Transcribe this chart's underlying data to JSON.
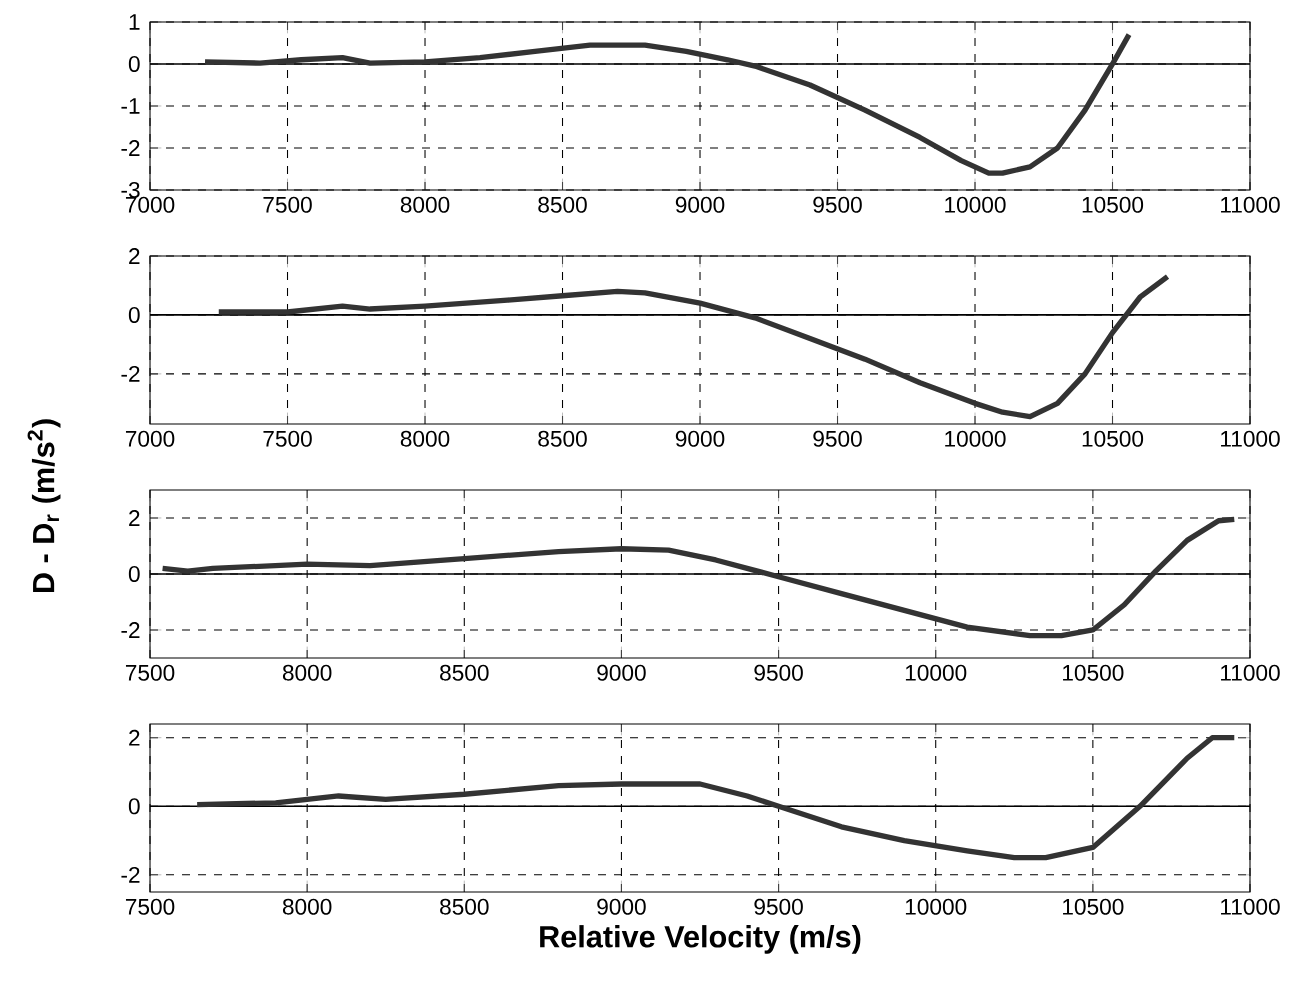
{
  "chart_data": [
    {
      "type": "line",
      "x": [
        7200,
        7400,
        7550,
        7700,
        7800,
        8000,
        8200,
        8400,
        8600,
        8800,
        8950,
        9100,
        9200,
        9400,
        9600,
        9800,
        9950,
        10050,
        10100,
        10200,
        10300,
        10400,
        10500,
        10560
      ],
      "series": [
        {
          "color": "#333333",
          "values": [
            0.05,
            0.02,
            0.1,
            0.15,
            0.02,
            0.05,
            0.15,
            0.3,
            0.45,
            0.45,
            0.3,
            0.1,
            -0.05,
            -0.5,
            -1.1,
            -1.75,
            -2.3,
            -2.6,
            -2.6,
            -2.45,
            -2.0,
            -1.1,
            0.0,
            0.7
          ]
        }
      ],
      "xlim": [
        7000,
        11000
      ],
      "xticks": [
        7000,
        7500,
        8000,
        8500,
        9000,
        9500,
        10000,
        10500,
        11000
      ],
      "ylim": [
        -3,
        1
      ],
      "yticks": [
        -3,
        -2,
        -1,
        0,
        1
      ],
      "grid": true,
      "ref_lines": [
        {
          "axis": "y",
          "value": 0
        }
      ]
    },
    {
      "type": "line",
      "x": [
        7250,
        7500,
        7700,
        7800,
        8000,
        8300,
        8500,
        8700,
        8800,
        9000,
        9200,
        9400,
        9600,
        9800,
        10000,
        10100,
        10200,
        10300,
        10400,
        10500,
        10600,
        10700
      ],
      "series": [
        {
          "color": "#333333",
          "values": [
            0.1,
            0.1,
            0.3,
            0.2,
            0.3,
            0.5,
            0.65,
            0.8,
            0.75,
            0.4,
            -0.1,
            -0.8,
            -1.5,
            -2.3,
            -3.0,
            -3.3,
            -3.45,
            -3.0,
            -2.0,
            -0.6,
            0.6,
            1.3
          ]
        }
      ],
      "xlim": [
        7000,
        11000
      ],
      "xticks": [
        7000,
        7500,
        8000,
        8500,
        9000,
        9500,
        10000,
        10500,
        11000
      ],
      "ylim": [
        -3.7,
        2
      ],
      "yticks": [
        -2,
        0,
        2
      ],
      "grid": true,
      "ylabel": "D - D$_{r}$ (m/s$^{2}$)",
      "ref_lines": [
        {
          "axis": "y",
          "value": 0
        }
      ]
    },
    {
      "type": "line",
      "x": [
        7540,
        7620,
        7700,
        8000,
        8200,
        8500,
        8800,
        9000,
        9150,
        9300,
        9500,
        9700,
        9900,
        10100,
        10300,
        10400,
        10500,
        10600,
        10700,
        10800,
        10900,
        10950
      ],
      "series": [
        {
          "color": "#333333",
          "values": [
            0.2,
            0.1,
            0.2,
            0.35,
            0.3,
            0.55,
            0.8,
            0.9,
            0.85,
            0.5,
            -0.1,
            -0.7,
            -1.3,
            -1.9,
            -2.2,
            -2.2,
            -2.0,
            -1.1,
            0.1,
            1.2,
            1.9,
            1.95
          ]
        }
      ],
      "xlim": [
        7500,
        11000
      ],
      "xticks": [
        7500,
        8000,
        8500,
        9000,
        9500,
        10000,
        10500,
        11000
      ],
      "ylim": [
        -3,
        3
      ],
      "yticks": [
        -2,
        0,
        2
      ],
      "grid": true,
      "ref_lines": [
        {
          "axis": "y",
          "value": 0
        }
      ]
    },
    {
      "type": "line",
      "x": [
        7650,
        7900,
        8100,
        8250,
        8500,
        8800,
        9000,
        9250,
        9400,
        9500,
        9700,
        9900,
        10100,
        10250,
        10350,
        10500,
        10650,
        10800,
        10880,
        10950
      ],
      "series": [
        {
          "color": "#333333",
          "values": [
            0.05,
            0.1,
            0.3,
            0.2,
            0.35,
            0.6,
            0.65,
            0.65,
            0.3,
            0.0,
            -0.6,
            -1.0,
            -1.3,
            -1.5,
            -1.5,
            -1.2,
            0.0,
            1.4,
            2.0,
            2.0
          ]
        }
      ],
      "xlim": [
        7500,
        11000
      ],
      "xticks": [
        7500,
        8000,
        8500,
        9000,
        9500,
        10000,
        10500,
        11000
      ],
      "ylim": [
        -2.5,
        2.4
      ],
      "yticks": [
        -2,
        0,
        2
      ],
      "grid": true,
      "xlabel": "Relative Velocity (m/s)",
      "ref_lines": [
        {
          "axis": "y",
          "value": 0
        }
      ]
    }
  ]
}
